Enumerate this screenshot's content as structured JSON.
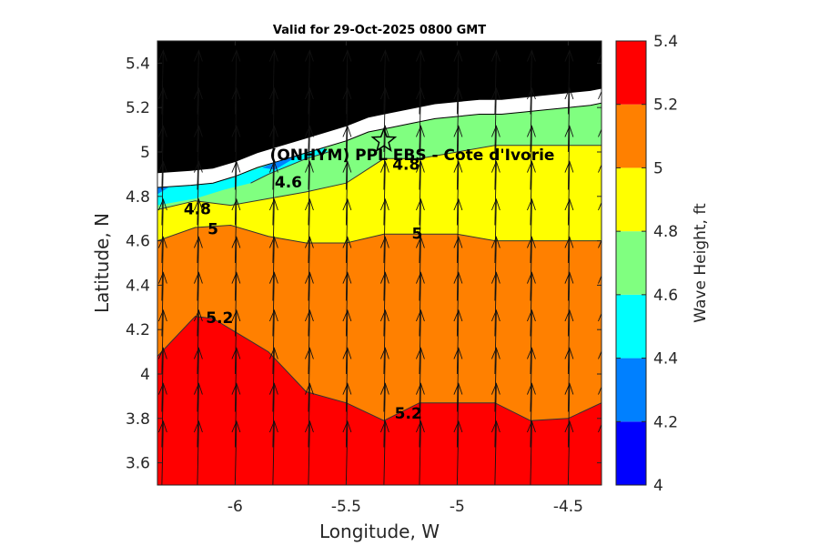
{
  "chart_data": {
    "type": "contour",
    "title": "Valid for 29-Oct-2025 0800 GMT",
    "xlabel": "Longitude, W",
    "ylabel": "Latitude, N",
    "xlim": [
      -6.35,
      -4.35
    ],
    "ylim": [
      3.5,
      5.5
    ],
    "xticks": [
      -6,
      -5.5,
      -5,
      -4.5
    ],
    "xtick_labels": [
      "-6",
      "-5.5",
      "-5",
      "-4.5"
    ],
    "yticks": [
      3.6,
      3.8,
      4,
      4.2,
      4.4,
      4.6,
      4.8,
      5,
      5.2,
      5.4
    ],
    "ytick_labels": [
      "3.6",
      "3.8",
      "4",
      "4.2",
      "4.4",
      "4.6",
      "4.8",
      "5",
      "5.2",
      "5.4"
    ],
    "colorbar": {
      "label": "Wave Height, ft",
      "range": [
        4,
        5.4
      ],
      "ticks": [
        "4",
        "4.2",
        "4.4",
        "4.6",
        "4.8",
        "5",
        "5.2",
        "5.4"
      ],
      "colors": [
        "#0000ff",
        "#0080ff",
        "#00ffff",
        "#80ff80",
        "#ffff00",
        "#ff8000",
        "#ff0000"
      ]
    },
    "fill_levels": [
      {
        "level": "5.2-5.4",
        "color": "#ff0000"
      },
      {
        "level": "5.0-5.2",
        "color": "#ff8000"
      },
      {
        "level": "4.8-5.0",
        "color": "#ffff00"
      },
      {
        "level": "4.6-4.8",
        "color": "#80ff80"
      },
      {
        "level": "4.4-4.6",
        "color": "#00ffff"
      },
      {
        "level": "4.2-4.4",
        "color": "#0080ff"
      }
    ],
    "contours": [
      {
        "level": 5.2,
        "points": [
          [
            -6.35,
            4.08
          ],
          [
            -6.18,
            4.26
          ],
          [
            -6.1,
            4.25
          ],
          [
            -5.85,
            4.1
          ],
          [
            -5.68,
            3.92
          ],
          [
            -5.5,
            3.87
          ],
          [
            -5.33,
            3.79
          ],
          [
            -5.17,
            3.87
          ],
          [
            -5.0,
            3.87
          ],
          [
            -4.83,
            3.87
          ],
          [
            -4.67,
            3.79
          ],
          [
            -4.5,
            3.8
          ],
          [
            -4.35,
            3.87
          ]
        ]
      },
      {
        "level": 5.0,
        "points": [
          [
            -6.35,
            4.6
          ],
          [
            -6.18,
            4.66
          ],
          [
            -6.02,
            4.67
          ],
          [
            -5.85,
            4.62
          ],
          [
            -5.68,
            4.59
          ],
          [
            -5.5,
            4.59
          ],
          [
            -5.33,
            4.63
          ],
          [
            -5.17,
            4.63
          ],
          [
            -5.0,
            4.63
          ],
          [
            -4.83,
            4.6
          ],
          [
            -4.5,
            4.6
          ],
          [
            -4.35,
            4.6
          ]
        ]
      },
      {
        "level": 4.8,
        "points": [
          [
            -6.35,
            4.74
          ],
          [
            -6.18,
            4.78
          ],
          [
            -6.02,
            4.76
          ],
          [
            -5.85,
            4.79
          ],
          [
            -5.68,
            4.82
          ],
          [
            -5.5,
            4.86
          ],
          [
            -5.33,
            4.97
          ],
          [
            -5.17,
            4.97
          ],
          [
            -5.0,
            5.0
          ],
          [
            -4.83,
            5.03
          ],
          [
            -4.5,
            5.03
          ],
          [
            -4.35,
            5.03
          ]
        ]
      },
      {
        "level": 4.6,
        "points": [
          [
            -5.93,
            4.86
          ],
          [
            -5.85,
            4.9
          ],
          [
            -5.68,
            4.97
          ],
          [
            -5.58,
            5.0
          ]
        ]
      }
    ],
    "contour_labels": [
      {
        "text": "5.2",
        "lon": -6.07,
        "lat": 4.25
      },
      {
        "text": "5.2",
        "lon": -5.22,
        "lat": 3.82
      },
      {
        "text": "5",
        "lon": -6.1,
        "lat": 4.65
      },
      {
        "text": "5",
        "lon": -5.18,
        "lat": 4.63
      },
      {
        "text": "4.8",
        "lon": -6.17,
        "lat": 4.74
      },
      {
        "text": "4.8",
        "lon": -5.23,
        "lat": 4.94
      },
      {
        "text": "4.6",
        "lon": -5.76,
        "lat": 4.86
      }
    ],
    "station": {
      "label": "(ONHYM) PPL EBS  - Cote d'Ivorie",
      "lon": -5.33,
      "lat": 5.05
    },
    "coastline": [
      [
        -6.35,
        4.84
      ],
      [
        -6.2,
        4.85
      ],
      [
        -6.1,
        4.86
      ],
      [
        -6.0,
        4.89
      ],
      [
        -5.9,
        4.93
      ],
      [
        -5.8,
        4.96
      ],
      [
        -5.7,
        4.99
      ],
      [
        -5.6,
        5.02
      ],
      [
        -5.5,
        5.05
      ],
      [
        -5.4,
        5.09
      ],
      [
        -5.3,
        5.11
      ],
      [
        -5.2,
        5.13
      ],
      [
        -5.1,
        5.15
      ],
      [
        -5.0,
        5.16
      ],
      [
        -4.9,
        5.17
      ],
      [
        -4.8,
        5.17
      ],
      [
        -4.7,
        5.18
      ],
      [
        -4.6,
        5.19
      ],
      [
        -4.5,
        5.2
      ],
      [
        -4.4,
        5.21
      ],
      [
        -4.35,
        5.22
      ]
    ],
    "wave_direction": "northward",
    "arrow_columns": [
      -6.33,
      -6.17,
      -6.0,
      -5.83,
      -5.67,
      -5.5,
      -5.33,
      -5.17,
      -5.0,
      -4.83,
      -4.67,
      -4.5,
      -4.35
    ],
    "arrow_rows": [
      3.5,
      3.67,
      3.83,
      4.0,
      4.17,
      4.33,
      4.5,
      4.67,
      4.83,
      5.0,
      5.17
    ]
  }
}
